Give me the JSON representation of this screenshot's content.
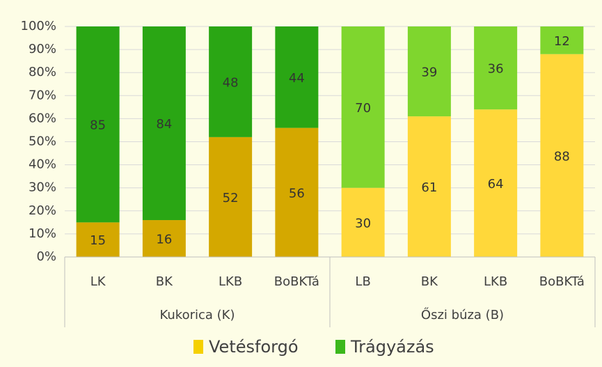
{
  "chart_data": {
    "type": "stacked_bar_100",
    "groups": [
      {
        "label": "Kukorica (K)",
        "categories": [
          "LK",
          "BK",
          "LKB",
          "BoBKTá"
        ]
      },
      {
        "label": "Őszi búza (B)",
        "categories": [
          "LB",
          "BK",
          "LKB",
          "BoBKTá"
        ]
      }
    ],
    "series": [
      {
        "name": "Vetésforgó",
        "color": "#f5d000",
        "colors": [
          "#d4a800",
          "#d4a800",
          "#d4a800",
          "#d4a800",
          "#ffd83a",
          "#ffd83a",
          "#ffd83a",
          "#ffd83a"
        ],
        "values": [
          15,
          16,
          52,
          56,
          30,
          61,
          64,
          88
        ]
      },
      {
        "name": "Trágyázás",
        "color": "#3cb81c",
        "colors": [
          "#2aa614",
          "#2aa614",
          "#2aa614",
          "#2aa614",
          "#7fd62e",
          "#7fd62e",
          "#7fd62e",
          "#7fd62e"
        ],
        "values": [
          85,
          84,
          48,
          44,
          70,
          39,
          36,
          12
        ]
      }
    ],
    "ylim": [
      0,
      100
    ],
    "yticks": [
      {
        "value": 0,
        "label": "0%"
      },
      {
        "value": 10,
        "label": "10%"
      },
      {
        "value": 20,
        "label": "20%"
      },
      {
        "value": 30,
        "label": "30%"
      },
      {
        "value": 40,
        "label": "40%"
      },
      {
        "value": 50,
        "label": "50%"
      },
      {
        "value": 60,
        "label": "60%"
      },
      {
        "value": 70,
        "label": "70%"
      },
      {
        "value": 80,
        "label": "80%"
      },
      {
        "value": 90,
        "label": "90%"
      },
      {
        "value": 100,
        "label": "100%"
      }
    ],
    "grid": true,
    "legend": "bottom"
  }
}
